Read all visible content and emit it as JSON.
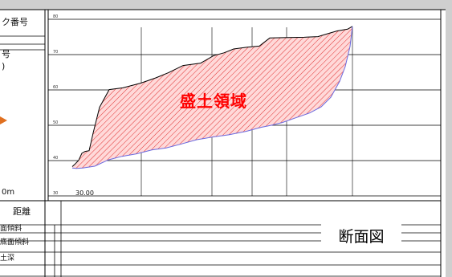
{
  "header": {
    "row1_label": "ク番号",
    "row2_label": "号",
    "row3_label": ")"
  },
  "left_panel": {
    "unit_label": "0m"
  },
  "table_rows": {
    "distance_label": "距離",
    "slope_label": "面傾斜",
    "bottom_slope_label": "底面傾斜",
    "depth_label": "土深"
  },
  "chart_data": {
    "type": "area",
    "title": "",
    "xlabel": "",
    "ylabel": "",
    "ylim": [
      30,
      80
    ],
    "y_ticks": [
      "30",
      "40",
      "50",
      "60",
      "70",
      "80"
    ],
    "x_start_label": "30.00",
    "fill_label": "盛土領域",
    "grid": true,
    "series": [
      {
        "name": "",
        "role": "upper ground line",
        "color": "#000000",
        "x": [
          0,
          3,
          8,
          12,
          16,
          21,
          26,
          34,
          46,
          63,
          85,
          104,
          120,
          138,
          160,
          176,
          189,
          201,
          218,
          233,
          246,
          262,
          289,
          306,
          318,
          330,
          343,
          349
        ],
        "y": [
          38.3,
          38.9,
          40.1,
          42.1,
          42.6,
          42.8,
          47.8,
          55.1,
          60.1,
          60.6,
          61.9,
          63.4,
          64.9,
          66.9,
          67.6,
          69.7,
          70.5,
          71.6,
          72.1,
          72.4,
          74.7,
          74.8,
          74.9,
          75.1,
          75.9,
          76.7,
          77.2,
          78.0
        ]
      },
      {
        "name": "",
        "role": "lower ground line",
        "color": "#6a6ae0",
        "x": [
          0,
          5,
          13,
          28,
          45,
          62,
          80,
          99,
          117,
          136,
          155,
          176,
          195,
          217,
          235,
          248,
          262,
          277,
          296,
          310,
          322,
          333,
          340,
          346,
          349
        ],
        "y": [
          37.9,
          37.8,
          37.9,
          38.4,
          40.2,
          41.2,
          41.9,
          43.0,
          43.6,
          44.7,
          45.9,
          46.7,
          47.3,
          48.3,
          49.4,
          50.0,
          50.8,
          52.0,
          53.5,
          55.2,
          57.9,
          62.4,
          66.6,
          72.3,
          78.0
        ]
      }
    ],
    "fill_color": "#e03030",
    "vertical_gridlines_x": [
      86,
      174,
      224,
      267,
      349
    ]
  },
  "caption": {
    "text": "断面図"
  }
}
